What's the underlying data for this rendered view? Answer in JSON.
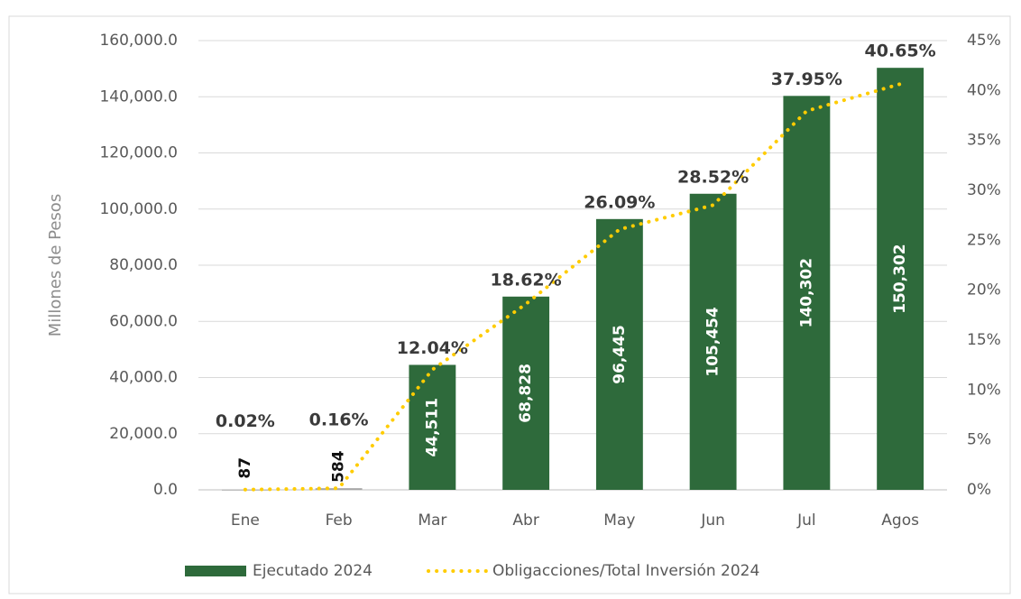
{
  "chart_data": {
    "type": "bar",
    "categories": [
      "Ene",
      "Feb",
      "Mar",
      "Abr",
      "May",
      "Jun",
      "Jul",
      "Agos"
    ],
    "ylabel": "Millones de Pesos",
    "ylim": [
      0,
      160000
    ],
    "yticks": [
      {
        "value": 0,
        "label": "0.0"
      },
      {
        "value": 20000,
        "label": "20,000.0"
      },
      {
        "value": 40000,
        "label": "40,000.0"
      },
      {
        "value": 60000,
        "label": "60,000.0"
      },
      {
        "value": 80000,
        "label": "80,000.0"
      },
      {
        "value": 100000,
        "label": "100,000.0"
      },
      {
        "value": 120000,
        "label": "120,000.0"
      },
      {
        "value": 140000,
        "label": "140,000.0"
      },
      {
        "value": 160000,
        "label": "160,000.0"
      }
    ],
    "y2lim": [
      0,
      45
    ],
    "y2ticks": [
      {
        "value": 0,
        "label": "0%"
      },
      {
        "value": 5,
        "label": "5%"
      },
      {
        "value": 10,
        "label": "10%"
      },
      {
        "value": 15,
        "label": "15%"
      },
      {
        "value": 20,
        "label": "20%"
      },
      {
        "value": 25,
        "label": "25%"
      },
      {
        "value": 30,
        "label": "30%"
      },
      {
        "value": 35,
        "label": "35%"
      },
      {
        "value": 40,
        "label": "40%"
      },
      {
        "value": 45,
        "label": "45%"
      }
    ],
    "grid": true,
    "legend": "bottom",
    "series": [
      {
        "name": "Ejecutado 2024",
        "type": "bar",
        "color": "#2e6a3b",
        "values": [
          87,
          584,
          44511,
          68828,
          96445,
          105454,
          140302,
          150302
        ],
        "value_labels": [
          "87",
          "584",
          "44,511",
          "68,828",
          "96,445",
          "105,454",
          "140,302",
          "150,302"
        ]
      },
      {
        "name": "Obligacciones/Total Inversión 2024",
        "type": "line",
        "axis": "y2",
        "color": "#ffcc00",
        "values": [
          0.02,
          0.16,
          12.04,
          18.62,
          26.09,
          28.52,
          37.95,
          40.65
        ],
        "value_labels": [
          "0.02%",
          "0.16%",
          "12.04%",
          "18.62%",
          "26.09%",
          "28.52%",
          "37.95%",
          "40.65%"
        ]
      }
    ]
  }
}
